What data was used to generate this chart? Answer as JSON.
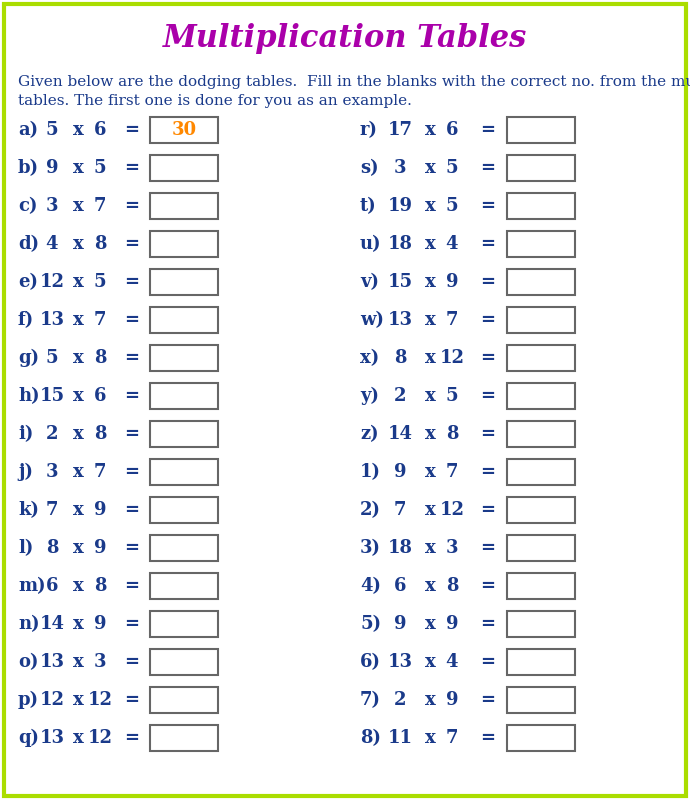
{
  "title": "Multiplication Tables",
  "title_color": "#aa00aa",
  "title_fontsize": 22,
  "instruction": "Given below are the dodging tables.  Fill in the blanks with the correct no. from the multiplication\ntables. The first one is done for you as an example.",
  "instruction_fontsize": 11,
  "text_color": "#1a3a8a",
  "border_color": "#aadd00",
  "answer_color": "#ff8800",
  "background_color": "#ffffff",
  "left_problems": [
    [
      "a)",
      "5",
      "x",
      "6",
      "=",
      "30"
    ],
    [
      "b)",
      "9",
      "x",
      "5",
      "=",
      ""
    ],
    [
      "c)",
      "3",
      "x",
      "7",
      "=",
      ""
    ],
    [
      "d)",
      "4",
      "x",
      "8",
      "=",
      ""
    ],
    [
      "e)",
      "12",
      "x",
      "5",
      "=",
      ""
    ],
    [
      "f)",
      "13",
      "x",
      "7",
      "=",
      ""
    ],
    [
      "g)",
      "5",
      "x",
      "8",
      "=",
      ""
    ],
    [
      "h)",
      "15",
      "x",
      "6",
      "=",
      ""
    ],
    [
      "i)",
      "2",
      "x",
      "8",
      "=",
      ""
    ],
    [
      "j)",
      "3",
      "x",
      "7",
      "=",
      ""
    ],
    [
      "k)",
      "7",
      "x",
      "9",
      "=",
      ""
    ],
    [
      "l)",
      "8",
      "x",
      "9",
      "=",
      ""
    ],
    [
      "m)",
      "6",
      "x",
      "8",
      "=",
      ""
    ],
    [
      "n)",
      "14",
      "x",
      "9",
      "=",
      ""
    ],
    [
      "o)",
      "13",
      "x",
      "3",
      "=",
      ""
    ],
    [
      "p)",
      "12",
      "x",
      "12",
      "=",
      ""
    ],
    [
      "q)",
      "13",
      "x",
      "12",
      "=",
      ""
    ]
  ],
  "right_problems": [
    [
      "r)",
      "17",
      "x",
      "6",
      "=",
      ""
    ],
    [
      "s)",
      "3",
      "x",
      "5",
      "=",
      ""
    ],
    [
      "t)",
      "19",
      "x",
      "5",
      "=",
      ""
    ],
    [
      "u)",
      "18",
      "x",
      "4",
      "=",
      ""
    ],
    [
      "v)",
      "15",
      "x",
      "9",
      "=",
      ""
    ],
    [
      "w)",
      "13",
      "x",
      "7",
      "=",
      ""
    ],
    [
      "x)",
      "8",
      "x",
      "12",
      "=",
      ""
    ],
    [
      "y)",
      "2",
      "x",
      "5",
      "=",
      ""
    ],
    [
      "z)",
      "14",
      "x",
      "8",
      "=",
      ""
    ],
    [
      "1)",
      "9",
      "x",
      "7",
      "=",
      ""
    ],
    [
      "2)",
      "7",
      "x",
      "12",
      "=",
      ""
    ],
    [
      "3)",
      "18",
      "x",
      "3",
      "=",
      ""
    ],
    [
      "4)",
      "6",
      "x",
      "8",
      "=",
      ""
    ],
    [
      "5)",
      "9",
      "x",
      "9",
      "=",
      ""
    ],
    [
      "6)",
      "13",
      "x",
      "4",
      "=",
      ""
    ],
    [
      "7)",
      "2",
      "x",
      "9",
      "=",
      ""
    ],
    [
      "8)",
      "11",
      "x",
      "7",
      "=",
      ""
    ]
  ]
}
